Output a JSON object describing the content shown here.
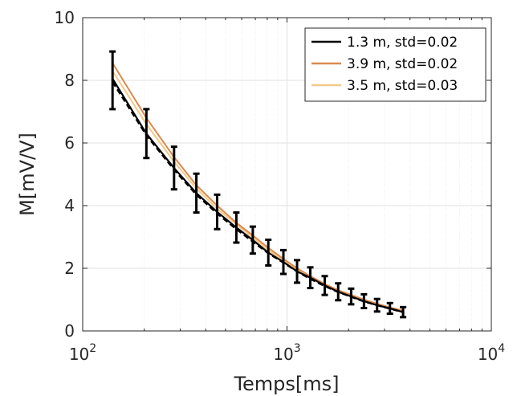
{
  "chart_data": {
    "type": "line",
    "xlabel": "Temps[ms]",
    "ylabel": "M[mV/V]",
    "x_scale": "log",
    "xlim": [
      100,
      10000
    ],
    "ylim": [
      0,
      10
    ],
    "x_ticks": [
      {
        "value": 100,
        "base": "10",
        "exp": "2"
      },
      {
        "value": 1000,
        "base": "10",
        "exp": "3"
      },
      {
        "value": 10000,
        "base": "10",
        "exp": "4"
      }
    ],
    "y_ticks": [
      "0",
      "2",
      "4",
      "6",
      "8",
      "10"
    ],
    "grid": true,
    "legend_position": "top-right",
    "x": [
      140,
      205,
      280,
      360,
      455,
      565,
      680,
      810,
      960,
      1120,
      1300,
      1530,
      1780,
      2060,
      2380,
      2760,
      3190,
      3700
    ],
    "series": [
      {
        "name": "1.3 m, std=0.02",
        "color": "#000000",
        "values": [
          8.05,
          6.3,
          5.2,
          4.4,
          3.8,
          3.3,
          2.9,
          2.5,
          2.2,
          1.9,
          1.7,
          1.45,
          1.25,
          1.1,
          0.95,
          0.82,
          0.72,
          0.6
        ]
      },
      {
        "name": "3.9 m, std=0.02",
        "color": "#d98b4f",
        "values": [
          8.55,
          6.8,
          5.55,
          4.65,
          4.0,
          3.45,
          3.05,
          2.65,
          2.3,
          2.0,
          1.75,
          1.5,
          1.3,
          1.15,
          1.0,
          0.87,
          0.75,
          0.65
        ]
      },
      {
        "name": "3.5 m, std=0.03",
        "color": "#f5c98a",
        "values": [
          8.3,
          6.6,
          5.4,
          4.55,
          3.9,
          3.4,
          2.98,
          2.58,
          2.25,
          1.97,
          1.72,
          1.48,
          1.28,
          1.12,
          0.98,
          0.85,
          0.73,
          0.63
        ]
      }
    ],
    "dashed_mean": {
      "color": "#000000",
      "values": [
        7.95,
        6.25,
        5.15,
        4.35,
        3.75,
        3.25,
        2.85,
        2.48,
        2.18,
        1.9,
        1.66,
        1.43,
        1.24,
        1.09,
        0.94,
        0.82,
        0.71,
        0.6
      ]
    },
    "error_bars": {
      "color": "#000000",
      "center": [
        8.0,
        6.3,
        5.2,
        4.4,
        3.8,
        3.3,
        2.9,
        2.5,
        2.2,
        1.9,
        1.7,
        1.45,
        1.25,
        1.1,
        0.95,
        0.82,
        0.72,
        0.6
      ],
      "half_width": [
        0.92,
        0.78,
        0.68,
        0.62,
        0.55,
        0.48,
        0.43,
        0.41,
        0.38,
        0.36,
        0.33,
        0.3,
        0.27,
        0.25,
        0.22,
        0.2,
        0.17,
        0.16
      ]
    }
  }
}
